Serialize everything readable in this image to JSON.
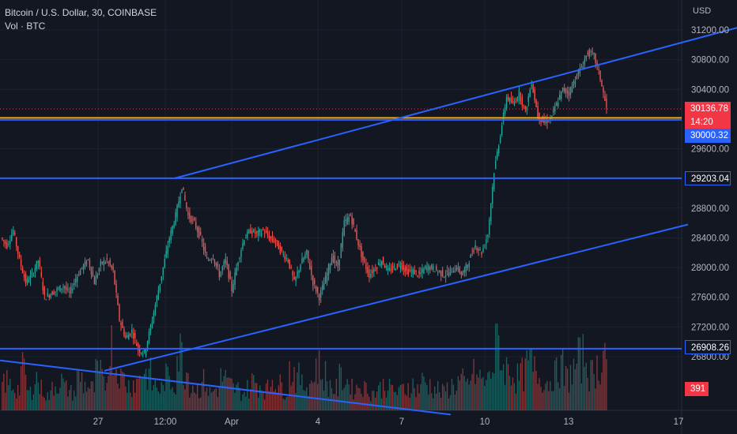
{
  "legend": {
    "symbol_line": "Bitcoin / U.S. Dollar, 30, COINBASE",
    "volume_line": "Vol · BTC"
  },
  "axis": {
    "currency": "USD",
    "price_ticks": [
      "31200.00",
      "30800.00",
      "30400.00",
      "29600.00",
      "28800.00",
      "28400.00",
      "28000.00",
      "27600.00",
      "27200.00",
      "26800.00"
    ],
    "time_ticks": [
      "27",
      "12:00",
      "Apr",
      "4",
      "7",
      "10",
      "13",
      "17"
    ]
  },
  "tags": {
    "last_price": "30136.78",
    "countdown": "14:20",
    "level_30000": "30000.32",
    "level_29203": "29203.04",
    "level_26908": "26908.26",
    "volume": "391"
  },
  "colors": {
    "background": "#131722",
    "up": "#26a69a",
    "down": "#ef5350",
    "trendline": "#2962ff",
    "orange_line": "#f7a600",
    "grid": "#1e222d"
  },
  "chart_data": {
    "type": "candlestick",
    "price_range": [
      26400,
      31400
    ],
    "horizontal_lines": [
      30000.32,
      29203.04,
      26908.26
    ],
    "last_price": 30136.78,
    "price_trajectory": [
      [
        28400,
        28300
      ],
      [
        28300,
        28500
      ],
      [
        28500,
        28100
      ],
      [
        28100,
        27800
      ],
      [
        27800,
        27900
      ],
      [
        27900,
        28100
      ],
      [
        28100,
        27600
      ],
      [
        27600,
        27650
      ],
      [
        27650,
        27700
      ],
      [
        27700,
        27750
      ],
      [
        27750,
        27650
      ],
      [
        27650,
        27850
      ],
      [
        27850,
        28000
      ],
      [
        28000,
        28100
      ],
      [
        28100,
        27800
      ],
      [
        27800,
        28050
      ],
      [
        28050,
        28100
      ],
      [
        28100,
        27950
      ],
      [
        27950,
        27300
      ],
      [
        27300,
        27050
      ],
      [
        27050,
        27150
      ],
      [
        27150,
        26900
      ],
      [
        26900,
        26850
      ],
      [
        26850,
        27200
      ],
      [
        27200,
        27600
      ],
      [
        27600,
        28000
      ],
      [
        28000,
        28400
      ],
      [
        28400,
        28700
      ],
      [
        28700,
        29100
      ],
      [
        29100,
        28700
      ],
      [
        28700,
        28600
      ],
      [
        28600,
        28400
      ],
      [
        28400,
        28100
      ],
      [
        28100,
        28150
      ],
      [
        28150,
        27900
      ],
      [
        27900,
        28100
      ],
      [
        28100,
        27700
      ],
      [
        27700,
        28100
      ],
      [
        28100,
        28400
      ],
      [
        28400,
        28500
      ],
      [
        28500,
        28450
      ],
      [
        28450,
        28500
      ],
      [
        28500,
        28400
      ],
      [
        28400,
        28350
      ],
      [
        28350,
        28200
      ],
      [
        28200,
        28100
      ],
      [
        28100,
        27800
      ],
      [
        27800,
        28050
      ],
      [
        28050,
        28200
      ],
      [
        28200,
        27800
      ],
      [
        27800,
        27600
      ],
      [
        27600,
        27850
      ],
      [
        27850,
        28150
      ],
      [
        28150,
        28000
      ],
      [
        28000,
        28600
      ],
      [
        28600,
        28700
      ],
      [
        28700,
        28400
      ],
      [
        28400,
        28100
      ],
      [
        28100,
        27900
      ],
      [
        27900,
        28000
      ],
      [
        28000,
        28100
      ],
      [
        28100,
        27950
      ],
      [
        27950,
        28000
      ],
      [
        28000,
        28050
      ],
      [
        28050,
        27950
      ],
      [
        27950,
        27950
      ],
      [
        27950,
        27900
      ],
      [
        27900,
        28000
      ],
      [
        28000,
        28000
      ],
      [
        28000,
        27950
      ],
      [
        27950,
        27900
      ],
      [
        27900,
        27950
      ],
      [
        27950,
        28000
      ],
      [
        28000,
        27900
      ],
      [
        27900,
        28100
      ],
      [
        28100,
        28300
      ],
      [
        28300,
        28200
      ],
      [
        28200,
        28450
      ],
      [
        28450,
        29300
      ],
      [
        29300,
        29800
      ],
      [
        29800,
        30300
      ],
      [
        30300,
        30200
      ],
      [
        30200,
        30350
      ],
      [
        30350,
        30100
      ],
      [
        30100,
        30500
      ],
      [
        30500,
        30050
      ],
      [
        30050,
        29950
      ],
      [
        29950,
        30000
      ],
      [
        30000,
        30200
      ],
      [
        30200,
        30400
      ],
      [
        30400,
        30350
      ],
      [
        30350,
        30550
      ],
      [
        30550,
        30700
      ],
      [
        30700,
        30900
      ],
      [
        30900,
        30850
      ],
      [
        30850,
        30550
      ],
      [
        30550,
        30136
      ]
    ],
    "volume_profile": [
      40,
      35,
      30,
      55,
      25,
      45,
      30,
      20,
      35,
      40,
      30,
      25,
      45,
      35,
      30,
      50,
      40,
      90,
      60,
      45,
      35,
      40,
      55,
      50,
      35,
      30,
      45,
      40,
      80,
      55,
      35,
      30,
      40,
      25,
      30,
      45,
      35,
      30,
      25,
      30,
      40,
      35,
      30,
      45,
      35,
      30,
      55,
      45,
      35,
      40,
      60,
      50,
      35,
      30,
      45,
      40,
      30,
      35,
      30,
      25,
      30,
      35,
      30,
      25,
      30,
      35,
      30,
      40,
      35,
      30,
      25,
      30,
      35,
      40,
      35,
      50,
      45,
      40,
      60,
      95,
      60,
      55,
      45,
      50,
      65,
      55,
      45,
      40,
      50,
      60,
      45,
      55,
      70,
      75,
      50,
      60,
      85
    ],
    "trendlines": [
      {
        "name": "upper channel",
        "from": [
          221,
          29203
        ],
        "to": [
          932,
          31230
        ]
      },
      {
        "name": "lower channel",
        "from": [
          132,
          26610
        ],
        "to": [
          870,
          28580
        ]
      },
      {
        "name": "descending",
        "from": [
          0,
          26750
        ],
        "to": [
          570,
          26020
        ]
      }
    ]
  }
}
